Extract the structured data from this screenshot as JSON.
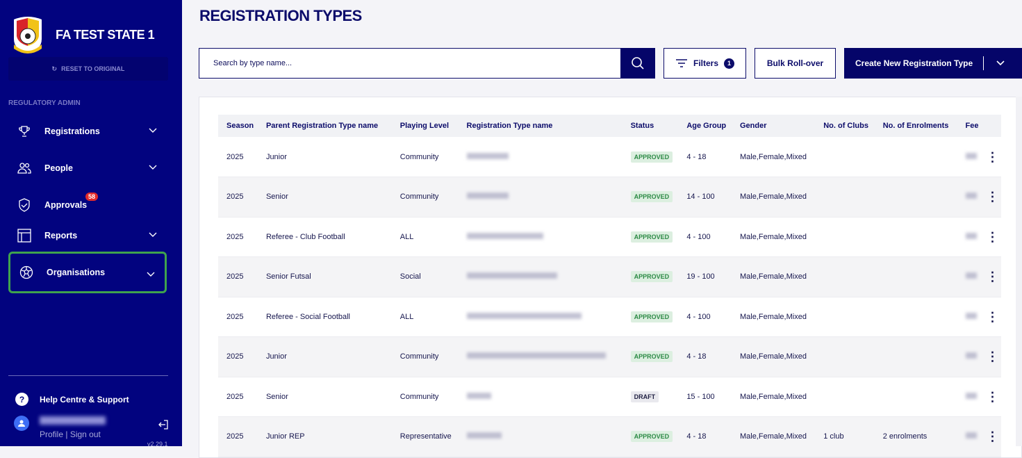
{
  "sidebar": {
    "org_name": "FA TEST STATE 1",
    "reset_label": "RESET TO ORIGINAL",
    "section_label": "REGULATORY ADMIN",
    "items": [
      {
        "label": "Registrations",
        "icon": "trophy-icon",
        "chevron": true
      },
      {
        "label": "People",
        "icon": "people-icon",
        "chevron": true
      },
      {
        "label": "Approvals",
        "icon": "shield-check-icon",
        "badge": "58"
      },
      {
        "label": "Reports",
        "icon": "table-icon",
        "chevron": true
      },
      {
        "label": "Organisations",
        "icon": "football-icon",
        "chevron": true,
        "active": true
      }
    ],
    "help_label": "Help Centre & Support",
    "profile_link": "Profile",
    "signout_link": "Sign out",
    "separator": "|",
    "version": "v2.29.1"
  },
  "page": {
    "title": "REGISTRATION TYPES",
    "search_placeholder": "Search by type name...",
    "filters_label": "Filters",
    "filters_count": "1",
    "bulk_label": "Bulk Roll-over",
    "create_label": "Create New Registration Type"
  },
  "table": {
    "headers": [
      "Season",
      "Parent Registration Type name",
      "Playing Level",
      "Registration Type name",
      "Status",
      "Age Group",
      "Gender",
      "No. of Clubs",
      "No. of Enrolments",
      "Fee"
    ],
    "rows": [
      {
        "season": "2025",
        "parent": "Junior",
        "level": "Community",
        "status": "APPROVED",
        "age": "4 - 18",
        "gender": "Male,Female,Mixed",
        "clubs": "",
        "enrol": ""
      },
      {
        "season": "2025",
        "parent": "Senior",
        "level": "Community",
        "status": "APPROVED",
        "age": "14 - 100",
        "gender": "Male,Female,Mixed",
        "clubs": "",
        "enrol": ""
      },
      {
        "season": "2025",
        "parent": "Referee - Club Football",
        "level": "ALL",
        "status": "APPROVED",
        "age": "4 - 100",
        "gender": "Male,Female,Mixed",
        "clubs": "",
        "enrol": ""
      },
      {
        "season": "2025",
        "parent": "Senior Futsal",
        "level": "Social",
        "status": "APPROVED",
        "age": "19 - 100",
        "gender": "Male,Female,Mixed",
        "clubs": "",
        "enrol": ""
      },
      {
        "season": "2025",
        "parent": "Referee - Social Football",
        "level": "ALL",
        "status": "APPROVED",
        "age": "4 - 100",
        "gender": "Male,Female,Mixed",
        "clubs": "",
        "enrol": ""
      },
      {
        "season": "2025",
        "parent": "Junior",
        "level": "Community",
        "status": "APPROVED",
        "age": "4 - 18",
        "gender": "Male,Female,Mixed",
        "clubs": "",
        "enrol": ""
      },
      {
        "season": "2025",
        "parent": "Senior",
        "level": "Community",
        "status": "DRAFT",
        "age": "15 - 100",
        "gender": "Male,Female,Mixed",
        "clubs": "",
        "enrol": ""
      },
      {
        "season": "2025",
        "parent": "Junior REP",
        "level": "Representative",
        "status": "APPROVED",
        "age": "4 - 18",
        "gender": "Male,Female,Mixed",
        "clubs": "1 club",
        "enrol": "2 enrolments"
      }
    ]
  },
  "colors": {
    "sidebar": "#02037f",
    "primary": "#050569",
    "active_outline": "#3fa34d",
    "badge": "#e02b2b"
  }
}
